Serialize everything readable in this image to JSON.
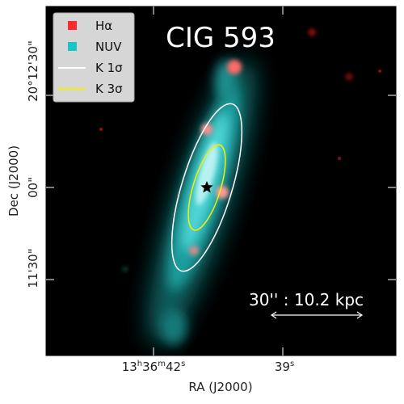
{
  "title": "CIG 593",
  "legend": [
    {
      "label": "Hα",
      "color": "#ff2a2a",
      "kind": "square"
    },
    {
      "label": "NUV",
      "color": "#19c6c6",
      "kind": "square"
    },
    {
      "label": "K 1σ",
      "color": "#ffffff",
      "kind": "line"
    },
    {
      "label": "K 3σ",
      "color": "#f0f000",
      "kind": "line"
    }
  ],
  "scale_bar": {
    "label": "30'' : 10.2 kpc"
  },
  "axes": {
    "xlabel": "RA (J2000)",
    "ylabel": "Dec (J2000)",
    "x_ticks": [
      {
        "main": "13",
        "sup1": "h",
        "mid": "36",
        "sup2": "m",
        "tail": "42",
        "sup3": "s"
      },
      {
        "main": "39",
        "sup1": "s",
        "mid": "",
        "sup2": "",
        "tail": "",
        "sup3": ""
      }
    ],
    "y_ticks": [
      "20°12'30\"",
      "00\"",
      "11'30\""
    ]
  },
  "colors": {
    "frame": "#000000",
    "halpha": "#ff2a2a",
    "nuv": "#19c6c6"
  }
}
